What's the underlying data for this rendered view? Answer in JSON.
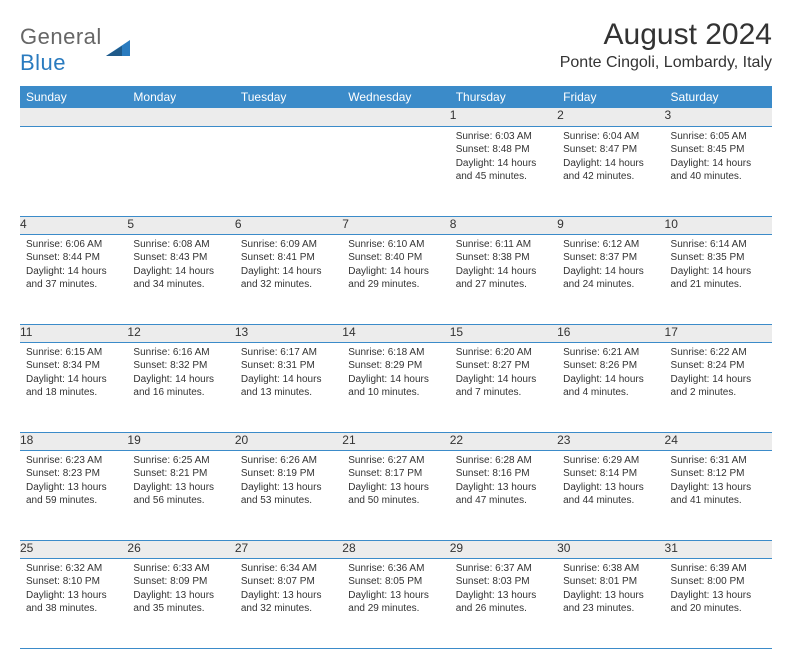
{
  "logo": {
    "text1": "General",
    "text2": "Blue"
  },
  "title": "August 2024",
  "location": "Ponte Cingoli, Lombardy, Italy",
  "colors": {
    "header_bg": "#3b8bc9",
    "header_fg": "#ffffff",
    "daynum_bg": "#ececec",
    "row_border": "#3b8bc9",
    "text": "#333333",
    "logo_gray": "#666666",
    "logo_blue": "#2a7bbf"
  },
  "weekdays": [
    "Sunday",
    "Monday",
    "Tuesday",
    "Wednesday",
    "Thursday",
    "Friday",
    "Saturday"
  ],
  "weeks": [
    [
      null,
      null,
      null,
      null,
      {
        "n": "1",
        "sr": "6:03 AM",
        "ss": "8:48 PM",
        "dl": "14 hours and 45 minutes."
      },
      {
        "n": "2",
        "sr": "6:04 AM",
        "ss": "8:47 PM",
        "dl": "14 hours and 42 minutes."
      },
      {
        "n": "3",
        "sr": "6:05 AM",
        "ss": "8:45 PM",
        "dl": "14 hours and 40 minutes."
      }
    ],
    [
      {
        "n": "4",
        "sr": "6:06 AM",
        "ss": "8:44 PM",
        "dl": "14 hours and 37 minutes."
      },
      {
        "n": "5",
        "sr": "6:08 AM",
        "ss": "8:43 PM",
        "dl": "14 hours and 34 minutes."
      },
      {
        "n": "6",
        "sr": "6:09 AM",
        "ss": "8:41 PM",
        "dl": "14 hours and 32 minutes."
      },
      {
        "n": "7",
        "sr": "6:10 AM",
        "ss": "8:40 PM",
        "dl": "14 hours and 29 minutes."
      },
      {
        "n": "8",
        "sr": "6:11 AM",
        "ss": "8:38 PM",
        "dl": "14 hours and 27 minutes."
      },
      {
        "n": "9",
        "sr": "6:12 AM",
        "ss": "8:37 PM",
        "dl": "14 hours and 24 minutes."
      },
      {
        "n": "10",
        "sr": "6:14 AM",
        "ss": "8:35 PM",
        "dl": "14 hours and 21 minutes."
      }
    ],
    [
      {
        "n": "11",
        "sr": "6:15 AM",
        "ss": "8:34 PM",
        "dl": "14 hours and 18 minutes."
      },
      {
        "n": "12",
        "sr": "6:16 AM",
        "ss": "8:32 PM",
        "dl": "14 hours and 16 minutes."
      },
      {
        "n": "13",
        "sr": "6:17 AM",
        "ss": "8:31 PM",
        "dl": "14 hours and 13 minutes."
      },
      {
        "n": "14",
        "sr": "6:18 AM",
        "ss": "8:29 PM",
        "dl": "14 hours and 10 minutes."
      },
      {
        "n": "15",
        "sr": "6:20 AM",
        "ss": "8:27 PM",
        "dl": "14 hours and 7 minutes."
      },
      {
        "n": "16",
        "sr": "6:21 AM",
        "ss": "8:26 PM",
        "dl": "14 hours and 4 minutes."
      },
      {
        "n": "17",
        "sr": "6:22 AM",
        "ss": "8:24 PM",
        "dl": "14 hours and 2 minutes."
      }
    ],
    [
      {
        "n": "18",
        "sr": "6:23 AM",
        "ss": "8:23 PM",
        "dl": "13 hours and 59 minutes."
      },
      {
        "n": "19",
        "sr": "6:25 AM",
        "ss": "8:21 PM",
        "dl": "13 hours and 56 minutes."
      },
      {
        "n": "20",
        "sr": "6:26 AM",
        "ss": "8:19 PM",
        "dl": "13 hours and 53 minutes."
      },
      {
        "n": "21",
        "sr": "6:27 AM",
        "ss": "8:17 PM",
        "dl": "13 hours and 50 minutes."
      },
      {
        "n": "22",
        "sr": "6:28 AM",
        "ss": "8:16 PM",
        "dl": "13 hours and 47 minutes."
      },
      {
        "n": "23",
        "sr": "6:29 AM",
        "ss": "8:14 PM",
        "dl": "13 hours and 44 minutes."
      },
      {
        "n": "24",
        "sr": "6:31 AM",
        "ss": "8:12 PM",
        "dl": "13 hours and 41 minutes."
      }
    ],
    [
      {
        "n": "25",
        "sr": "6:32 AM",
        "ss": "8:10 PM",
        "dl": "13 hours and 38 minutes."
      },
      {
        "n": "26",
        "sr": "6:33 AM",
        "ss": "8:09 PM",
        "dl": "13 hours and 35 minutes."
      },
      {
        "n": "27",
        "sr": "6:34 AM",
        "ss": "8:07 PM",
        "dl": "13 hours and 32 minutes."
      },
      {
        "n": "28",
        "sr": "6:36 AM",
        "ss": "8:05 PM",
        "dl": "13 hours and 29 minutes."
      },
      {
        "n": "29",
        "sr": "6:37 AM",
        "ss": "8:03 PM",
        "dl": "13 hours and 26 minutes."
      },
      {
        "n": "30",
        "sr": "6:38 AM",
        "ss": "8:01 PM",
        "dl": "13 hours and 23 minutes."
      },
      {
        "n": "31",
        "sr": "6:39 AM",
        "ss": "8:00 PM",
        "dl": "13 hours and 20 minutes."
      }
    ]
  ],
  "labels": {
    "sunrise": "Sunrise: ",
    "sunset": "Sunset: ",
    "daylight": "Daylight: "
  }
}
